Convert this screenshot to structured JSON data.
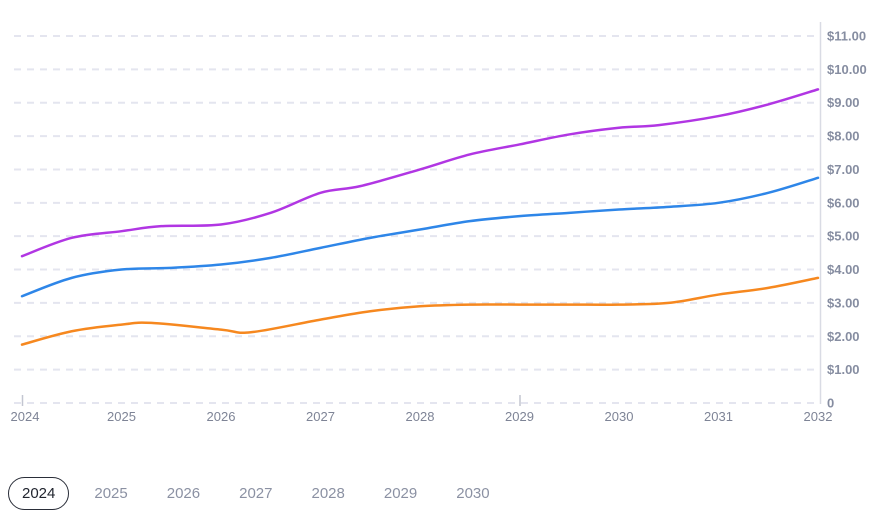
{
  "chart_data": {
    "type": "line",
    "title": "",
    "xlabel": "",
    "ylabel": "",
    "x_axis": {
      "tick_labels": [
        "2024",
        "2025",
        "2026",
        "2027",
        "2028",
        "2029",
        "2030",
        "2031",
        "2032"
      ],
      "tick_values": [
        2024,
        2025,
        2026,
        2027,
        2028,
        2029,
        2030,
        2031,
        2032
      ],
      "range": [
        2024,
        2032
      ],
      "small_tick_marks_at": [
        2024,
        2029
      ]
    },
    "y_axis": {
      "tick_labels": [
        "0",
        "$1.00",
        "$2.00",
        "$3.00",
        "$4.00",
        "$5.00",
        "$6.00",
        "$7.00",
        "$8.00",
        "$9.00",
        "$10.00",
        "$11.00"
      ],
      "tick_values": [
        0,
        1,
        2,
        3,
        4,
        5,
        6,
        7,
        8,
        9,
        10,
        11
      ],
      "range": [
        0,
        11
      ],
      "side": "right",
      "unit": "USD"
    },
    "grid": {
      "horizontal_dashed": true,
      "vertical": false
    },
    "legend": "none",
    "series": [
      {
        "name": "series-purple",
        "color": "#b136e3",
        "x": [
          2024,
          2024.5,
          2025,
          2025.4,
          2026,
          2026.5,
          2027,
          2027.4,
          2028,
          2028.5,
          2029,
          2029.5,
          2030,
          2030.4,
          2031,
          2031.5,
          2032
        ],
        "values": [
          4.4,
          4.95,
          5.15,
          5.3,
          5.35,
          5.7,
          6.3,
          6.5,
          7.0,
          7.45,
          7.75,
          8.05,
          8.25,
          8.33,
          8.6,
          8.95,
          9.4
        ]
      },
      {
        "name": "series-blue",
        "color": "#2e86e8",
        "x": [
          2024,
          2024.5,
          2025,
          2025.5,
          2026,
          2026.5,
          2027,
          2027.5,
          2028,
          2028.5,
          2029,
          2029.5,
          2030,
          2030.5,
          2031,
          2031.5,
          2032
        ],
        "values": [
          3.2,
          3.75,
          4.0,
          4.05,
          4.15,
          4.35,
          4.65,
          4.95,
          5.2,
          5.45,
          5.6,
          5.7,
          5.8,
          5.88,
          6.0,
          6.3,
          6.75
        ]
      },
      {
        "name": "series-orange",
        "color": "#f6881f",
        "x": [
          2024,
          2024.5,
          2025,
          2025.3,
          2026,
          2026.3,
          2027,
          2027.5,
          2028,
          2028.5,
          2029,
          2029.5,
          2030,
          2030.5,
          2031,
          2031.5,
          2032
        ],
        "values": [
          1.75,
          2.15,
          2.35,
          2.4,
          2.2,
          2.12,
          2.5,
          2.75,
          2.9,
          2.95,
          2.95,
          2.95,
          2.95,
          3.0,
          3.25,
          3.45,
          3.75
        ]
      }
    ]
  },
  "year_selector": {
    "selected": "2024",
    "options": [
      "2024",
      "2025",
      "2026",
      "2027",
      "2028",
      "2029",
      "2030"
    ]
  },
  "colors": {
    "background": "#ffffff",
    "axis_line": "#d9dbe4",
    "grid_line": "#e4e5ef",
    "tick_mark": "#c3c6d1",
    "y_label": "#868da1",
    "x_label": "#7e8496",
    "pill_selected_text": "#21252f",
    "pill_selected_border": "#2a2e39",
    "pill_text": "#8b91a3"
  }
}
